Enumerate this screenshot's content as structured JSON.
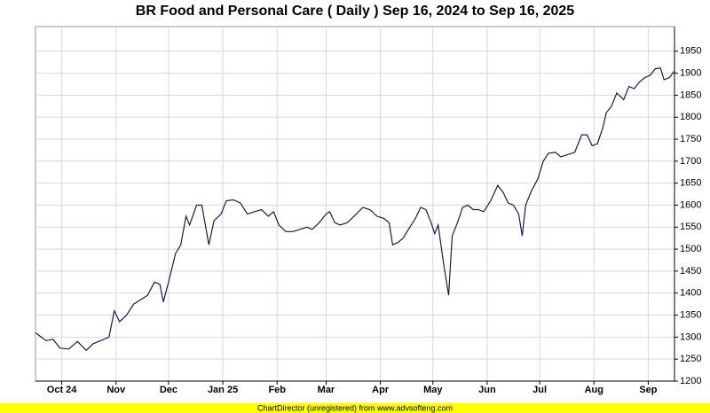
{
  "chart_data": {
    "type": "line",
    "title": "BR Food and Personal Care ( Daily ) Sep 16, 2024 to Sep 16, 2025",
    "footer": "ChartDirector (unregistered) from www.advsofteng.com",
    "x": [
      "2024-09-16",
      "2024-09-22",
      "2024-09-26",
      "2024-09-30",
      "2024-10-05",
      "2024-10-10",
      "2024-10-15",
      "2024-10-19",
      "2024-10-28",
      "2024-10-31",
      "2024-11-03",
      "2024-11-07",
      "2024-11-11",
      "2024-11-15",
      "2024-11-19",
      "2024-11-23",
      "2024-11-26",
      "2024-11-28",
      "2024-12-01",
      "2024-12-05",
      "2024-12-08",
      "2024-12-11",
      "2024-12-13",
      "2024-12-17",
      "2024-12-20",
      "2024-12-24",
      "2024-12-27",
      "2024-12-31",
      "2025-01-03",
      "2025-01-07",
      "2025-01-11",
      "2025-01-15",
      "2025-01-19",
      "2025-01-23",
      "2025-01-27",
      "2025-01-30",
      "2025-02-02",
      "2025-02-06",
      "2025-02-10",
      "2025-02-14",
      "2025-02-18",
      "2025-02-21",
      "2025-02-25",
      "2025-03-01",
      "2025-03-03",
      "2025-03-06",
      "2025-03-09",
      "2025-03-13",
      "2025-03-17",
      "2025-03-22",
      "2025-03-26",
      "2025-03-30",
      "2025-04-03",
      "2025-04-06",
      "2025-04-08",
      "2025-04-11",
      "2025-04-14",
      "2025-04-17",
      "2025-04-21",
      "2025-04-24",
      "2025-04-27",
      "2025-04-30",
      "2025-05-02",
      "2025-05-04",
      "2025-05-07",
      "2025-05-10",
      "2025-05-12",
      "2025-05-15",
      "2025-05-18",
      "2025-05-21",
      "2025-05-24",
      "2025-05-27",
      "2025-05-30",
      "2025-06-03",
      "2025-06-07",
      "2025-06-10",
      "2025-06-13",
      "2025-06-16",
      "2025-06-19",
      "2025-06-21",
      "2025-06-23",
      "2025-06-26",
      "2025-06-30",
      "2025-07-03",
      "2025-07-06",
      "2025-07-10",
      "2025-07-13",
      "2025-07-17",
      "2025-07-21",
      "2025-07-25",
      "2025-07-28",
      "2025-07-31",
      "2025-08-03",
      "2025-08-06",
      "2025-08-08",
      "2025-08-11",
      "2025-08-14",
      "2025-08-18",
      "2025-08-21",
      "2025-08-24",
      "2025-08-27",
      "2025-08-30",
      "2025-09-02",
      "2025-09-05",
      "2025-09-08",
      "2025-09-10",
      "2025-09-13",
      "2025-09-16"
    ],
    "series": [
      {
        "name": "BR Food and Personal Care",
        "color": "#1a1a4e",
        "values": [
          1310,
          1292,
          1295,
          1275,
          1273,
          1290,
          1270,
          1285,
          1300,
          1360,
          1335,
          1350,
          1375,
          1385,
          1395,
          1425,
          1420,
          1380,
          1425,
          1490,
          1510,
          1575,
          1555,
          1600,
          1600,
          1510,
          1565,
          1580,
          1610,
          1612,
          1605,
          1580,
          1585,
          1590,
          1575,
          1585,
          1555,
          1540,
          1540,
          1545,
          1550,
          1545,
          1560,
          1580,
          1585,
          1560,
          1555,
          1560,
          1575,
          1595,
          1590,
          1575,
          1570,
          1560,
          1510,
          1515,
          1525,
          1545,
          1570,
          1595,
          1590,
          1560,
          1535,
          1555,
          1470,
          1395,
          1530,
          1560,
          1595,
          1600,
          1590,
          1590,
          1585,
          1610,
          1645,
          1630,
          1605,
          1600,
          1580,
          1530,
          1600,
          1630,
          1660,
          1700,
          1718,
          1720,
          1710,
          1715,
          1720,
          1760,
          1760,
          1735,
          1740,
          1775,
          1810,
          1825,
          1855,
          1840,
          1870,
          1865,
          1880,
          1890,
          1895,
          1910,
          1912,
          1885,
          1890,
          1905
        ]
      }
    ],
    "xlim": [
      "2024-09-16",
      "2025-09-16"
    ],
    "xticks": [
      {
        "value": "2024-10-01",
        "label": "Oct 24"
      },
      {
        "value": "2024-11-01",
        "label": "Nov"
      },
      {
        "value": "2024-12-01",
        "label": "Dec"
      },
      {
        "value": "2025-01-01",
        "label": "Jan 25"
      },
      {
        "value": "2025-02-01",
        "label": "Feb"
      },
      {
        "value": "2025-03-01",
        "label": "Mar"
      },
      {
        "value": "2025-04-01",
        "label": "Apr"
      },
      {
        "value": "2025-05-01",
        "label": "May"
      },
      {
        "value": "2025-06-01",
        "label": "Jun"
      },
      {
        "value": "2025-07-01",
        "label": "Jul"
      },
      {
        "value": "2025-08-01",
        "label": "Aug"
      },
      {
        "value": "2025-09-01",
        "label": "Sep"
      }
    ],
    "ylim": [
      1200,
      2006
    ],
    "yticks": [
      1200,
      1250,
      1300,
      1350,
      1400,
      1450,
      1500,
      1550,
      1600,
      1650,
      1700,
      1750,
      1800,
      1850,
      1900,
      1950
    ],
    "grid": true
  }
}
